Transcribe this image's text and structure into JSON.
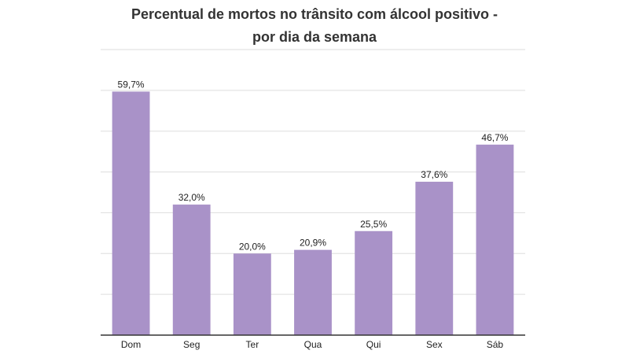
{
  "chart_data": {
    "type": "bar",
    "title_lines": [
      "Percentual de mortos no trânsito com álcool positivo -",
      "por dia da semana"
    ],
    "categories": [
      "Dom",
      "Seg",
      "Ter",
      "Qua",
      "Qui",
      "Sex",
      "Sáb"
    ],
    "values": [
      59.7,
      32.0,
      20.0,
      20.9,
      25.5,
      37.6,
      46.7
    ],
    "value_labels": [
      "59,7%",
      "32,0%",
      "20,0%",
      "20,9%",
      "25,5%",
      "37,6%",
      "46,7%"
    ],
    "xlabel": "",
    "ylabel": "",
    "ylim": [
      0,
      70
    ],
    "grid": true,
    "legend": "none",
    "bar_color": "#a992c8",
    "grid_color": "#dddddd",
    "axis_color": "#333333"
  }
}
